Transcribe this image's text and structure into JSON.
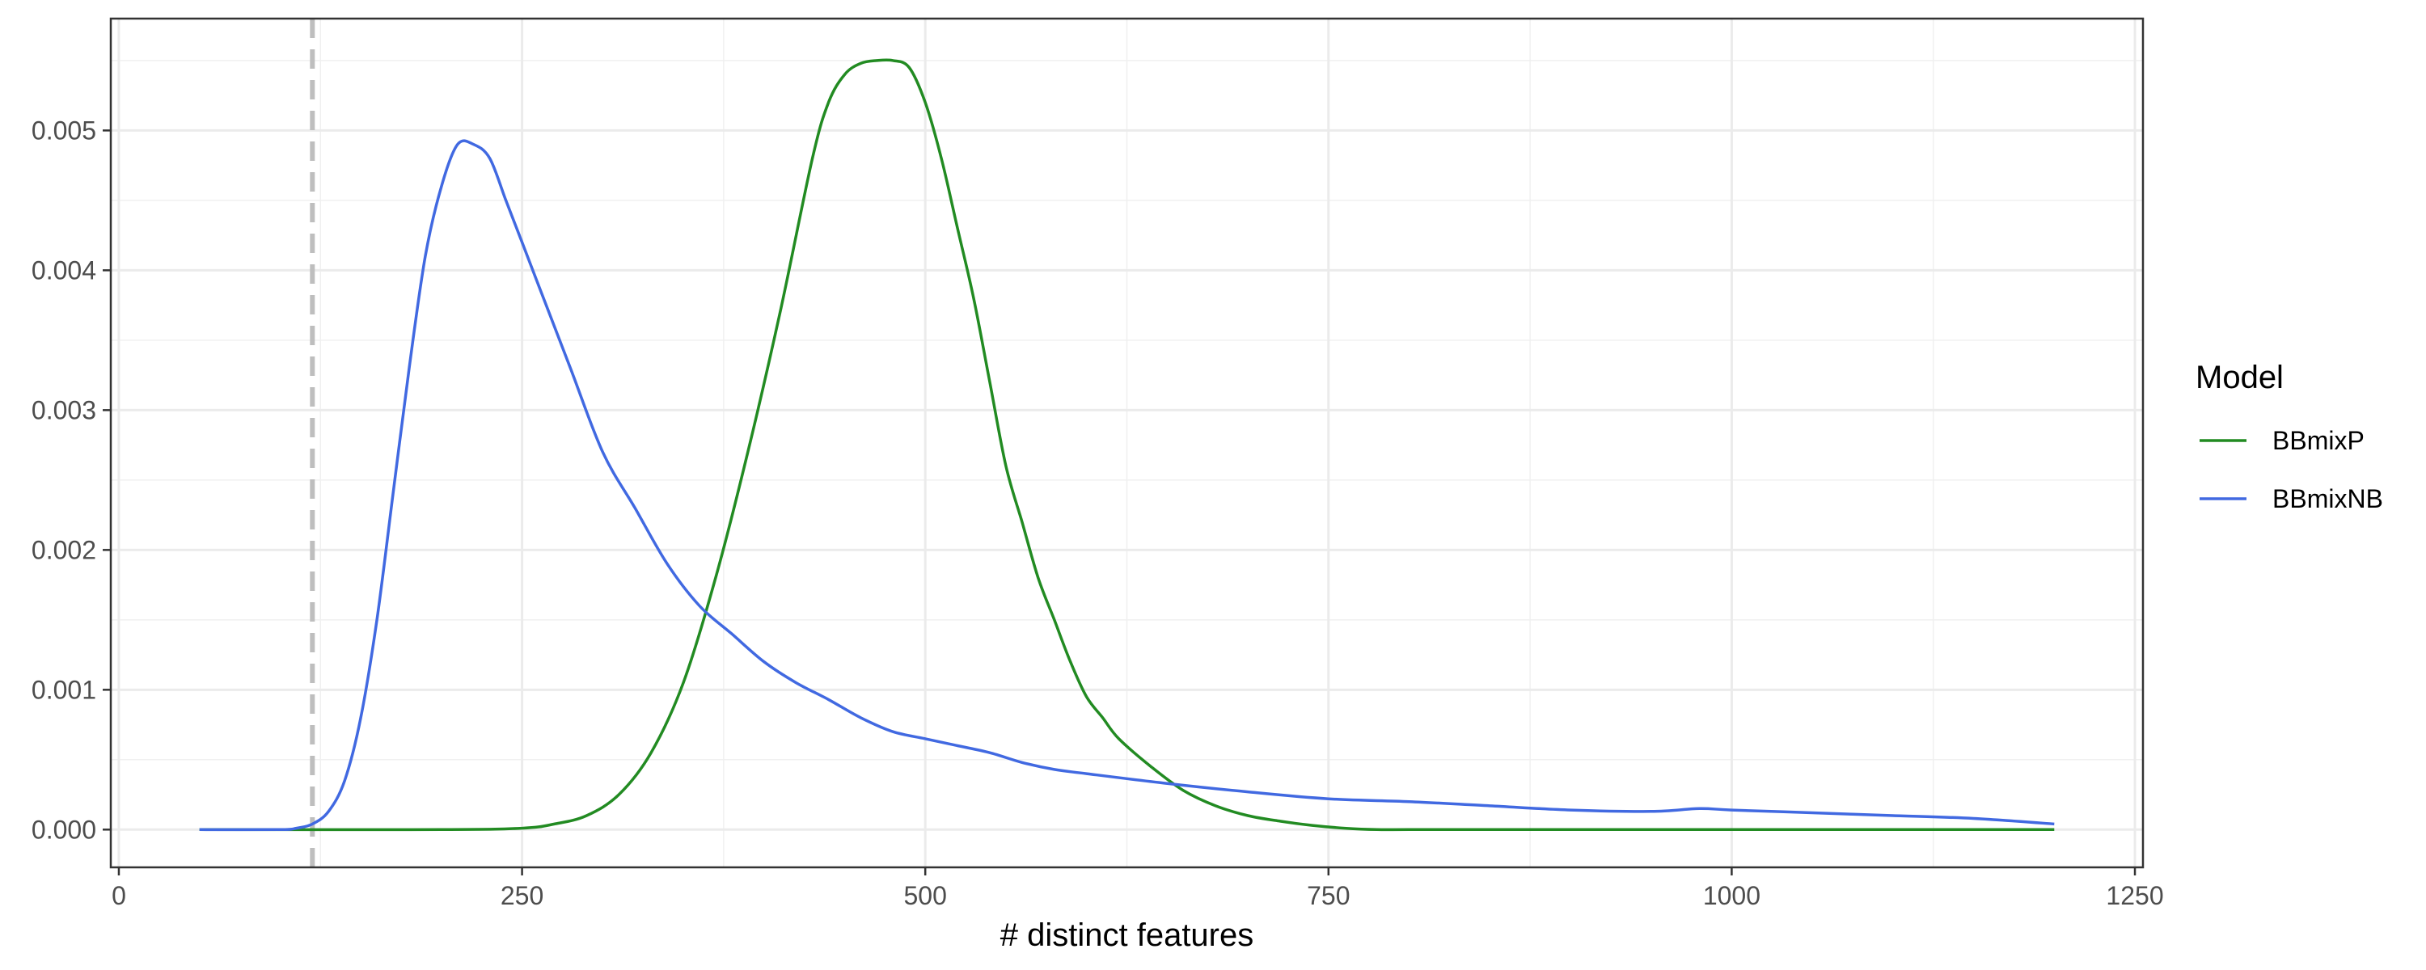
{
  "chart_data": {
    "type": "line",
    "title": "",
    "xlabel": "# distinct features",
    "ylabel": "",
    "xlim": [
      -5,
      1255
    ],
    "ylim": [
      -0.00027,
      0.0058
    ],
    "x_ticks": [
      0,
      250,
      500,
      750,
      1000,
      1250
    ],
    "x_tick_labels": [
      "0",
      "250",
      "500",
      "750",
      "1000",
      "1250"
    ],
    "y_ticks": [
      0,
      0.001,
      0.002,
      0.003,
      0.004,
      0.005
    ],
    "y_tick_labels": [
      "0.000",
      "0.001",
      "0.002",
      "0.003",
      "0.004",
      "0.005"
    ],
    "grid": true,
    "legend": {
      "title": "Model",
      "position": "right"
    },
    "reference_lines": [
      {
        "axis": "x",
        "value": 120,
        "style": "dashed",
        "color": "#bebebe"
      }
    ],
    "series": [
      {
        "name": "BBmixP",
        "color": "#228B22",
        "x": [
          50,
          200,
          250,
          270,
          290,
          310,
          330,
          350,
          370,
          390,
          410,
          430,
          440,
          450,
          460,
          470,
          480,
          490,
          500,
          510,
          520,
          530,
          540,
          550,
          560,
          570,
          580,
          590,
          600,
          610,
          620,
          640,
          660,
          680,
          700,
          720,
          740,
          760,
          780,
          800,
          850,
          900,
          1000,
          1100,
          1200
        ],
        "y": [
          0,
          0,
          1e-05,
          4e-05,
          0.0001,
          0.00025,
          0.00055,
          0.00105,
          0.0018,
          0.0027,
          0.0037,
          0.0048,
          0.0052,
          0.0054,
          0.00548,
          0.0055,
          0.0055,
          0.00545,
          0.0052,
          0.0048,
          0.0043,
          0.0038,
          0.0032,
          0.0026,
          0.0022,
          0.0018,
          0.0015,
          0.0012,
          0.00095,
          0.0008,
          0.00065,
          0.00045,
          0.00028,
          0.00017,
          0.0001,
          6e-05,
          3e-05,
          1e-05,
          0,
          0,
          0,
          0,
          0,
          0,
          0
        ]
      },
      {
        "name": "BBmixNB",
        "color": "#4169E1",
        "x": [
          50,
          100,
          110,
          120,
          130,
          140,
          150,
          160,
          170,
          180,
          190,
          200,
          210,
          220,
          230,
          240,
          250,
          260,
          280,
          300,
          320,
          340,
          360,
          380,
          400,
          420,
          440,
          460,
          480,
          500,
          520,
          540,
          560,
          580,
          600,
          650,
          700,
          750,
          800,
          850,
          900,
          950,
          980,
          1000,
          1050,
          1100,
          1150,
          1200
        ],
        "y": [
          0,
          0,
          1e-05,
          4e-05,
          0.00013,
          0.00035,
          0.0008,
          0.0015,
          0.0024,
          0.0033,
          0.0041,
          0.0046,
          0.0049,
          0.0049,
          0.0048,
          0.0045,
          0.0042,
          0.0039,
          0.0033,
          0.0027,
          0.0023,
          0.0019,
          0.0016,
          0.0014,
          0.0012,
          0.00105,
          0.00093,
          0.0008,
          0.0007,
          0.00065,
          0.0006,
          0.00055,
          0.00048,
          0.00043,
          0.0004,
          0.00033,
          0.00027,
          0.00022,
          0.0002,
          0.00017,
          0.00014,
          0.00013,
          0.00015,
          0.00014,
          0.00012,
          0.0001,
          8e-05,
          4e-05
        ]
      }
    ]
  }
}
